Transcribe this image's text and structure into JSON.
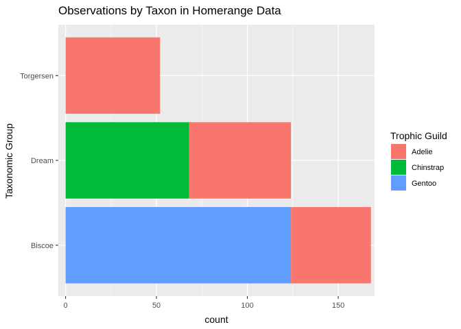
{
  "chart_data": {
    "type": "bar",
    "orientation": "horizontal",
    "stacked": true,
    "title": "Observations by Taxon in Homerange Data",
    "xlabel": "count",
    "ylabel": "Taxonomic Group",
    "categories": [
      "Biscoe",
      "Dream",
      "Torgersen"
    ],
    "series": [
      {
        "name": "Gentoo",
        "color": "#619CFF",
        "values": [
          124,
          0,
          0
        ]
      },
      {
        "name": "Chinstrap",
        "color": "#00BA38",
        "values": [
          0,
          68,
          0
        ]
      },
      {
        "name": "Adelie",
        "color": "#F8766D",
        "values": [
          44,
          56,
          52
        ]
      }
    ],
    "stack_order": [
      "Gentoo",
      "Chinstrap",
      "Adelie"
    ],
    "xlim": [
      -4,
      170
    ],
    "xticks": [
      0,
      50,
      100,
      150
    ],
    "legend": {
      "title": "Trophic Guild",
      "position": "right",
      "entries": [
        "Adelie",
        "Chinstrap",
        "Gentoo"
      ]
    },
    "grid": true,
    "panel_background": "#EBEBEB",
    "grid_color": "#FFFFFF"
  }
}
